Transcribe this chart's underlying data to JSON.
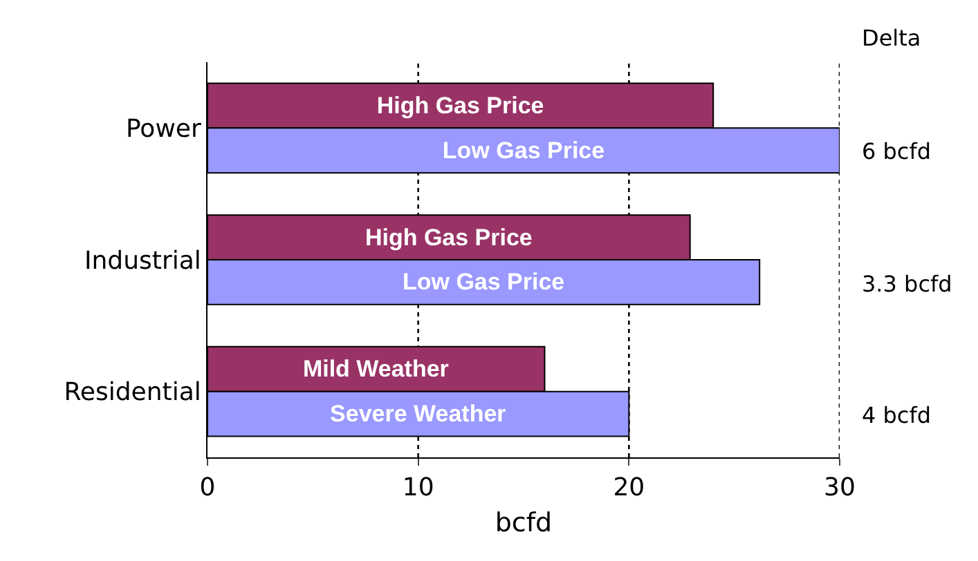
{
  "chart_data": {
    "type": "bar",
    "orientation": "horizontal",
    "categories": [
      "Power",
      "Industrial",
      "Residential"
    ],
    "series": [
      {
        "color": "#993366",
        "values": [
          24,
          22.9,
          16
        ],
        "value_labels": [
          "High Gas Price",
          "High Gas Price",
          "Mild Weather"
        ]
      },
      {
        "color": "#9999ff",
        "values": [
          30,
          26.2,
          20
        ],
        "value_labels": [
          "Low Gas Price",
          "Low Gas Price",
          "Severe Weather"
        ]
      }
    ],
    "xlim": [
      0,
      30
    ],
    "xticks": [
      0,
      10,
      20,
      30
    ],
    "xlabel": "bcfd",
    "grid": "x",
    "line_style": "dotted",
    "annotations": [
      "Delta",
      "6 bcfd",
      "3.3 bcfd",
      "4 bcfd"
    ]
  }
}
